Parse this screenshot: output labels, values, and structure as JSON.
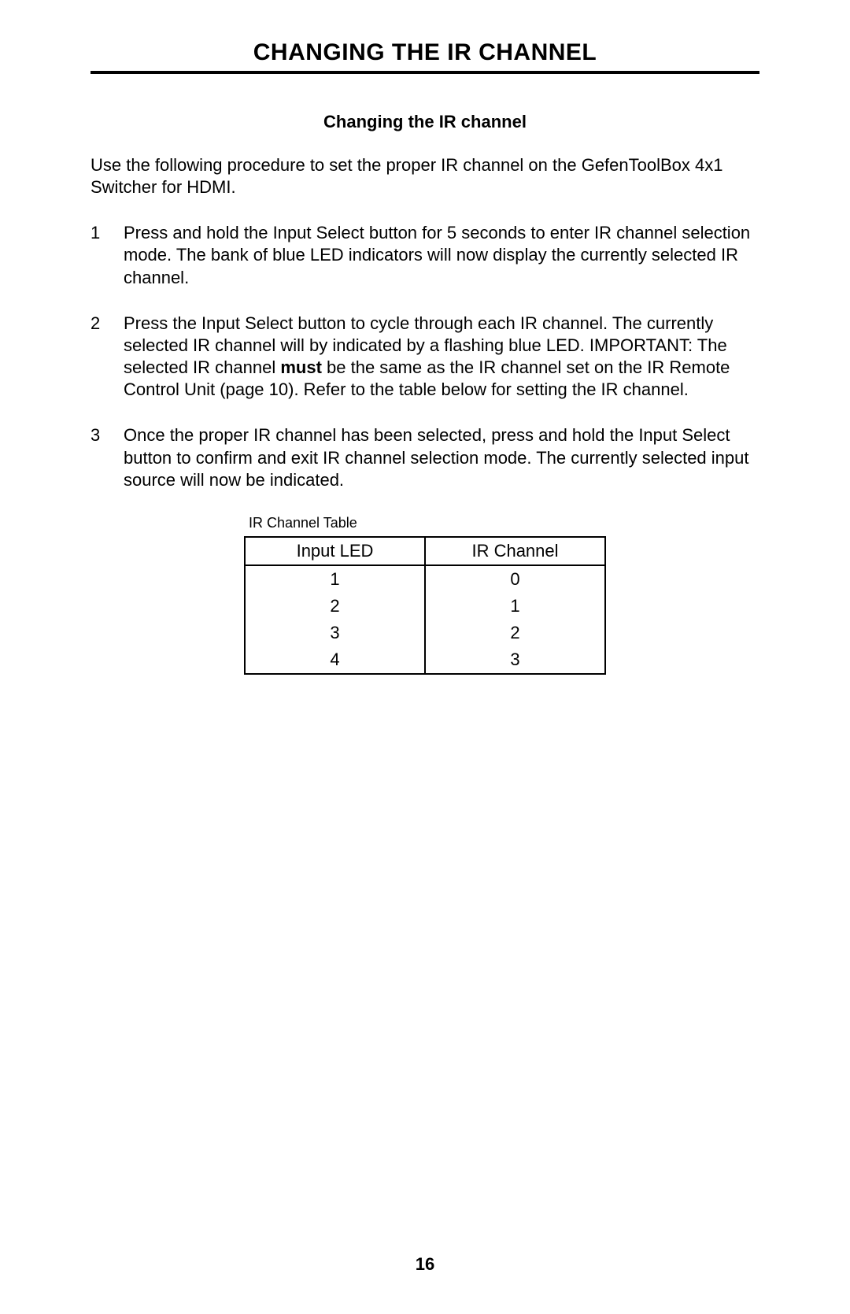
{
  "page_title": "CHANGING THE IR CHANNEL",
  "subheading": "Changing the IR channel",
  "intro": "Use the following procedure to set the proper IR channel on the GefenToolBox 4x1 Switcher for HDMI.",
  "steps": {
    "s1": "Press and hold the Input Select button for 5 seconds to enter IR channel selection mode.  The bank of blue LED indicators will now display the currently selected IR channel.",
    "s2a": "Press the Input Select button to cycle through each IR channel.  The currently selected IR channel will by indicated by a flashing blue LED.  IMPORTANT: The selected IR channel ",
    "s2b": "must",
    "s2c": " be the same as the IR channel set on the IR Remote Control Unit (page 10).  Refer to the table below for setting the IR channel.",
    "s3": "Once the proper IR channel has been selected, press and hold the Input Select button to confirm and exit IR channel selection mode.  The currently selected input source will now be indicated."
  },
  "table": {
    "caption": "IR Channel Table",
    "columns": [
      "Input LED",
      "IR Channel"
    ],
    "rows": [
      [
        "1",
        "0"
      ],
      [
        "2",
        "1"
      ],
      [
        "3",
        "2"
      ],
      [
        "4",
        "3"
      ]
    ]
  },
  "page_number": "16"
}
